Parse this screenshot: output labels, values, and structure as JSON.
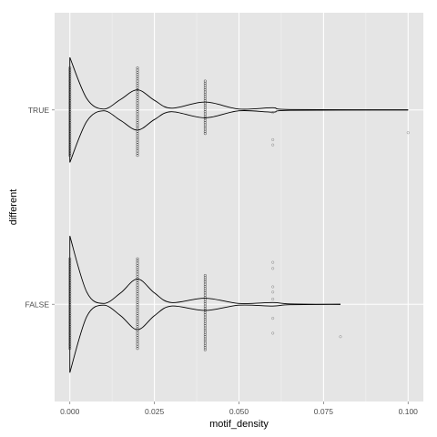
{
  "chart_data": {
    "type": "violin",
    "orientation": "horizontal",
    "xlabel": "motif_density",
    "ylabel": "different",
    "xlim": [
      -0.0045,
      0.1045
    ],
    "x_ticks": [
      0.0,
      0.025,
      0.05,
      0.075,
      0.1
    ],
    "x_tick_labels": [
      "0.000",
      "0.025",
      "0.050",
      "0.075",
      "0.100"
    ],
    "categories": [
      "TRUE",
      "FALSE"
    ],
    "grid": true,
    "colors": {
      "panel": "#e5e5e5",
      "grid_major": "#ffffff",
      "grid_minor": "#f2f2f2",
      "outline": "#000000",
      "point": "#000000"
    },
    "groups": [
      {
        "name": "TRUE",
        "max_value": 0.1,
        "violin_profile": [
          [
            0.0,
            0.6
          ],
          [
            0.005,
            0.13
          ],
          [
            0.01,
            0.01
          ],
          [
            0.015,
            0.12
          ],
          [
            0.02,
            0.23
          ],
          [
            0.025,
            0.11
          ],
          [
            0.03,
            0.02
          ],
          [
            0.04,
            0.09
          ],
          [
            0.05,
            0.01
          ],
          [
            0.06,
            0.025
          ],
          [
            0.065,
            0.005
          ],
          [
            0.1,
            0.0
          ]
        ],
        "points": [
          {
            "x": 0.0,
            "offsets": [
              -0.48,
              0.52
            ]
          },
          {
            "x": 0.02,
            "offsets": [
              -0.48,
              0.52
            ]
          },
          {
            "x": 0.04,
            "offsets": [
              -0.33,
              0.27
            ]
          },
          {
            "x": 0.06,
            "offsets": [
              0.03,
              0.34,
              0.4
            ]
          },
          {
            "x": 0.1,
            "offsets": [
              0.26
            ]
          }
        ]
      },
      {
        "name": "FALSE",
        "max_value": 0.08,
        "violin_profile": [
          [
            0.0,
            0.78
          ],
          [
            0.005,
            0.14
          ],
          [
            0.01,
            0.01
          ],
          [
            0.015,
            0.13
          ],
          [
            0.02,
            0.29
          ],
          [
            0.025,
            0.13
          ],
          [
            0.03,
            0.02
          ],
          [
            0.04,
            0.07
          ],
          [
            0.05,
            0.01
          ],
          [
            0.06,
            0.02
          ],
          [
            0.065,
            0.005
          ],
          [
            0.08,
            0.0
          ]
        ],
        "points": [
          {
            "x": 0.0,
            "offsets": [
              -0.52,
              0.52
            ]
          },
          {
            "x": 0.02,
            "offsets": [
              -0.52,
              0.52
            ]
          },
          {
            "x": 0.04,
            "offsets": [
              -0.33,
              0.52
            ]
          },
          {
            "x": 0.06,
            "offsets": [
              -0.48,
              -0.41,
              -0.2,
              -0.14,
              -0.06,
              0.16,
              0.33
            ]
          },
          {
            "x": 0.08,
            "offsets": [
              0.37
            ]
          }
        ]
      }
    ]
  }
}
